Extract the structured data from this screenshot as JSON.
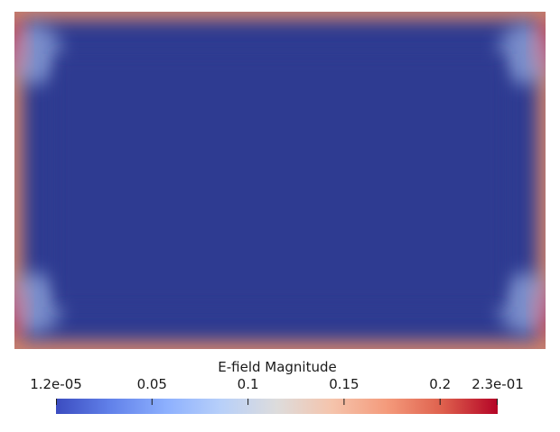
{
  "colorbar": {
    "title": "E-field Magnitude",
    "range": [
      1.2e-05,
      0.23
    ],
    "ticks": [
      {
        "value": 1.2e-05,
        "label": "1.2e-05"
      },
      {
        "value": 0.05,
        "label": "0.05"
      },
      {
        "value": 0.1,
        "label": "0.1"
      },
      {
        "value": 0.15,
        "label": "0.15"
      },
      {
        "value": 0.2,
        "label": "0.2"
      },
      {
        "value": 0.23,
        "label": "2.3e-01"
      }
    ],
    "colormap": [
      "#3b4cc0",
      "#6282ea",
      "#8db0fe",
      "#b8d0f9",
      "#dddcdc",
      "#f5c4ac",
      "#f49a7b",
      "#de604d",
      "#b40426"
    ]
  },
  "field": {
    "interior_color": "#2e3b91",
    "edge_color": "#c9806e",
    "corner_color": "#b40426"
  }
}
